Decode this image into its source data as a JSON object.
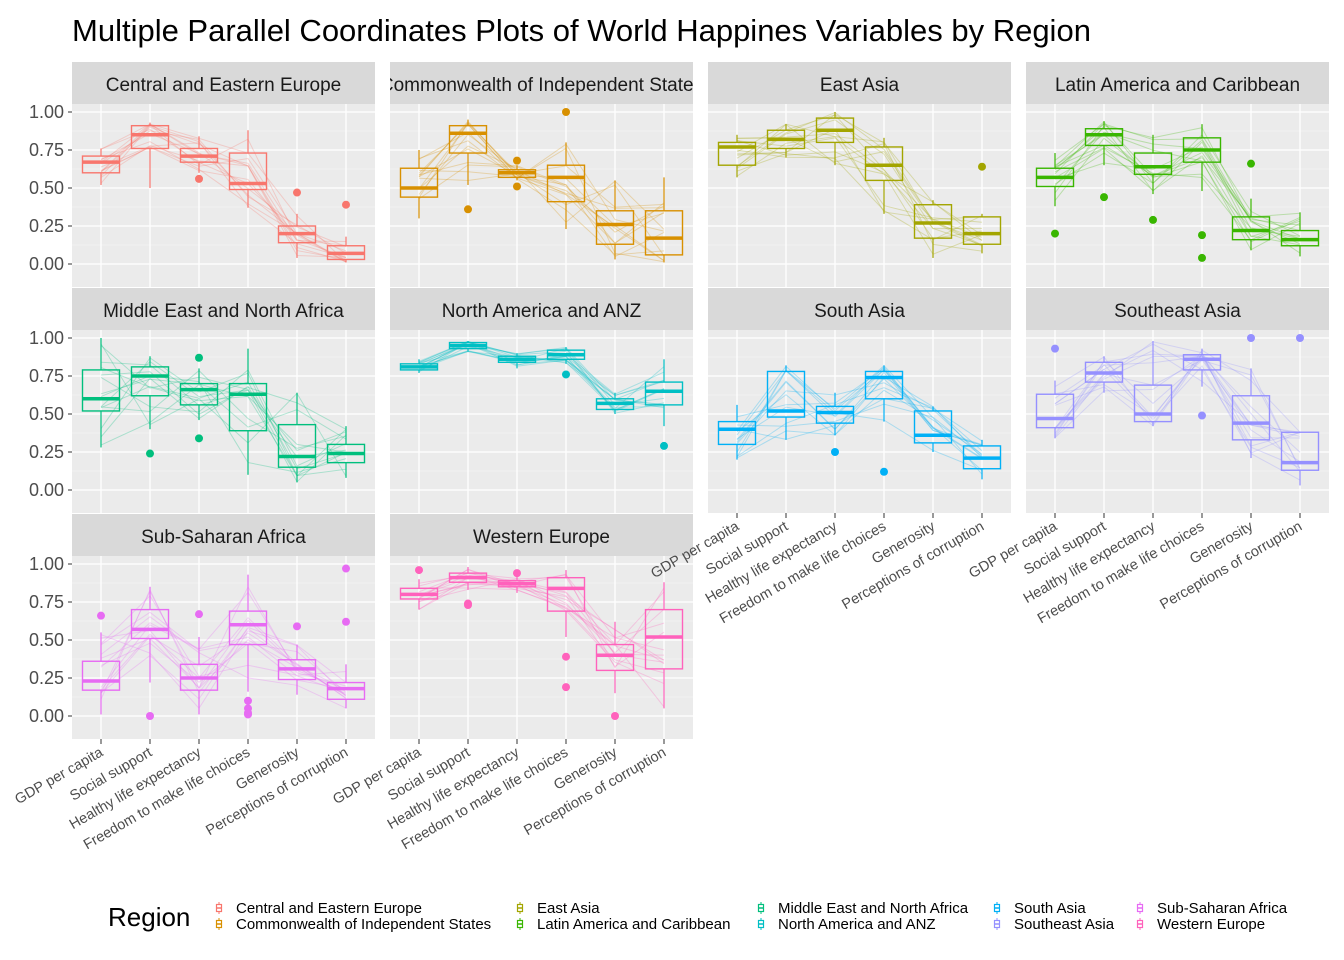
{
  "title": "Multiple Parallel Coordinates Plots of World Happines Variables by Region",
  "chart_data": {
    "type": "boxplot + parallel coordinates",
    "variables": [
      "GDP per capita",
      "Social support",
      "Healthy life expectancy",
      "Freedom to make life choices",
      "Generosity",
      "Perceptions of corruption"
    ],
    "y_ticks": [
      "0.00",
      "0.25",
      "0.50",
      "0.75",
      "1.00"
    ],
    "ylim": [
      0,
      1
    ],
    "grid": true,
    "legend": {
      "title": "Region",
      "position": "bottom",
      "items": [
        {
          "label": "Central and Eastern Europe",
          "color": "#F8766D"
        },
        {
          "label": "Commonwealth of Independent States",
          "color": "#D89000"
        },
        {
          "label": "East Asia",
          "color": "#A3A500"
        },
        {
          "label": "Latin America and Caribbean",
          "color": "#39B600"
        },
        {
          "label": "Middle East and North Africa",
          "color": "#00BF7D"
        },
        {
          "label": "North America and ANZ",
          "color": "#00BFC4"
        },
        {
          "label": "South Asia",
          "color": "#00B0F6"
        },
        {
          "label": "Southeast Asia",
          "color": "#9590FF"
        },
        {
          "label": "Sub-Saharan Africa",
          "color": "#E76BF3"
        },
        {
          "label": "Western Europe",
          "color": "#FF62BC"
        }
      ]
    },
    "panels": [
      {
        "region": "Central and Eastern Europe",
        "strip_label": "Central and Eastern Europe",
        "color": "#F8766D",
        "boxes": [
          {
            "q1": 0.6,
            "median": 0.67,
            "q3": 0.71,
            "min": 0.52,
            "max": 0.76,
            "outliers": []
          },
          {
            "q1": 0.76,
            "median": 0.85,
            "q3": 0.91,
            "min": 0.5,
            "max": 0.93,
            "outliers": []
          },
          {
            "q1": 0.67,
            "median": 0.71,
            "q3": 0.76,
            "min": 0.6,
            "max": 0.84,
            "outliers": [
              0.56
            ]
          },
          {
            "q1": 0.49,
            "median": 0.53,
            "q3": 0.73,
            "min": 0.37,
            "max": 0.88,
            "outliers": []
          },
          {
            "q1": 0.14,
            "median": 0.2,
            "q3": 0.25,
            "min": 0.04,
            "max": 0.33,
            "outliers": [
              0.47
            ]
          },
          {
            "q1": 0.03,
            "median": 0.07,
            "q3": 0.12,
            "min": 0.01,
            "max": 0.18,
            "outliers": [
              0.39
            ]
          }
        ]
      },
      {
        "region": "Commonwealth of Independent States",
        "strip_label": "Commonwealth of Independent States",
        "color": "#D89000",
        "boxes": [
          {
            "q1": 0.44,
            "median": 0.5,
            "q3": 0.63,
            "min": 0.3,
            "max": 0.75,
            "outliers": []
          },
          {
            "q1": 0.73,
            "median": 0.86,
            "q3": 0.91,
            "min": 0.52,
            "max": 0.95,
            "outliers": [
              0.36
            ]
          },
          {
            "q1": 0.57,
            "median": 0.6,
            "q3": 0.62,
            "min": 0.55,
            "max": 0.65,
            "outliers": [
              0.68,
              0.51
            ]
          },
          {
            "q1": 0.41,
            "median": 0.57,
            "q3": 0.65,
            "min": 0.23,
            "max": 0.8,
            "outliers": [
              1.0
            ]
          },
          {
            "q1": 0.13,
            "median": 0.26,
            "q3": 0.35,
            "min": 0.03,
            "max": 0.55,
            "outliers": []
          },
          {
            "q1": 0.06,
            "median": 0.17,
            "q3": 0.35,
            "min": 0.01,
            "max": 0.57,
            "outliers": []
          }
        ]
      },
      {
        "region": "East Asia",
        "strip_label": "East Asia",
        "color": "#A3A500",
        "boxes": [
          {
            "q1": 0.65,
            "median": 0.77,
            "q3": 0.8,
            "min": 0.57,
            "max": 0.85,
            "outliers": []
          },
          {
            "q1": 0.76,
            "median": 0.82,
            "q3": 0.88,
            "min": 0.7,
            "max": 0.92,
            "outliers": []
          },
          {
            "q1": 0.8,
            "median": 0.88,
            "q3": 0.96,
            "min": 0.65,
            "max": 1.0,
            "outliers": []
          },
          {
            "q1": 0.55,
            "median": 0.65,
            "q3": 0.77,
            "min": 0.33,
            "max": 0.83,
            "outliers": []
          },
          {
            "q1": 0.17,
            "median": 0.27,
            "q3": 0.39,
            "min": 0.04,
            "max": 0.42,
            "outliers": []
          },
          {
            "q1": 0.13,
            "median": 0.2,
            "q3": 0.31,
            "min": 0.07,
            "max": 0.33,
            "outliers": [
              0.64
            ]
          }
        ]
      },
      {
        "region": "Latin America and Caribbean",
        "strip_label": "Latin America and Caribbean",
        "color": "#39B600",
        "boxes": [
          {
            "q1": 0.51,
            "median": 0.57,
            "q3": 0.63,
            "min": 0.38,
            "max": 0.73,
            "outliers": [
              0.2
            ]
          },
          {
            "q1": 0.78,
            "median": 0.85,
            "q3": 0.89,
            "min": 0.65,
            "max": 0.94,
            "outliers": [
              0.44
            ]
          },
          {
            "q1": 0.59,
            "median": 0.64,
            "q3": 0.73,
            "min": 0.46,
            "max": 0.85,
            "outliers": [
              0.29
            ]
          },
          {
            "q1": 0.67,
            "median": 0.75,
            "q3": 0.83,
            "min": 0.48,
            "max": 0.92,
            "outliers": [
              0.19,
              0.04
            ]
          },
          {
            "q1": 0.16,
            "median": 0.22,
            "q3": 0.31,
            "min": 0.09,
            "max": 0.43,
            "outliers": [
              0.66
            ]
          },
          {
            "q1": 0.12,
            "median": 0.16,
            "q3": 0.22,
            "min": 0.05,
            "max": 0.34,
            "outliers": []
          }
        ]
      },
      {
        "region": "Middle East and North Africa",
        "strip_label": "Middle East and North Africa",
        "color": "#00BF7D",
        "boxes": [
          {
            "q1": 0.52,
            "median": 0.6,
            "q3": 0.79,
            "min": 0.28,
            "max": 1.0,
            "outliers": []
          },
          {
            "q1": 0.62,
            "median": 0.75,
            "q3": 0.81,
            "min": 0.4,
            "max": 0.88,
            "outliers": [
              0.24
            ]
          },
          {
            "q1": 0.56,
            "median": 0.66,
            "q3": 0.7,
            "min": 0.46,
            "max": 0.8,
            "outliers": [
              0.87,
              0.34
            ]
          },
          {
            "q1": 0.39,
            "median": 0.63,
            "q3": 0.7,
            "min": 0.1,
            "max": 0.93,
            "outliers": []
          },
          {
            "q1": 0.15,
            "median": 0.22,
            "q3": 0.43,
            "min": 0.05,
            "max": 0.64,
            "outliers": []
          },
          {
            "q1": 0.18,
            "median": 0.24,
            "q3": 0.3,
            "min": 0.08,
            "max": 0.42,
            "outliers": []
          }
        ]
      },
      {
        "region": "North America and ANZ",
        "strip_label": "North America and ANZ",
        "color": "#00BFC4",
        "boxes": [
          {
            "q1": 0.79,
            "median": 0.81,
            "q3": 0.83,
            "min": 0.77,
            "max": 0.86,
            "outliers": []
          },
          {
            "q1": 0.93,
            "median": 0.95,
            "q3": 0.97,
            "min": 0.91,
            "max": 0.98,
            "outliers": []
          },
          {
            "q1": 0.84,
            "median": 0.86,
            "q3": 0.88,
            "min": 0.8,
            "max": 0.9,
            "outliers": []
          },
          {
            "q1": 0.86,
            "median": 0.89,
            "q3": 0.92,
            "min": 0.83,
            "max": 0.94,
            "outliers": [
              0.76
            ]
          },
          {
            "q1": 0.53,
            "median": 0.57,
            "q3": 0.6,
            "min": 0.5,
            "max": 0.64,
            "outliers": []
          },
          {
            "q1": 0.56,
            "median": 0.65,
            "q3": 0.71,
            "min": 0.42,
            "max": 0.86,
            "outliers": [
              0.29
            ]
          }
        ]
      },
      {
        "region": "South Asia",
        "strip_label": "South Asia",
        "color": "#00B0F6",
        "boxes": [
          {
            "q1": 0.3,
            "median": 0.4,
            "q3": 0.45,
            "min": 0.2,
            "max": 0.56,
            "outliers": []
          },
          {
            "q1": 0.48,
            "median": 0.52,
            "q3": 0.78,
            "min": 0.33,
            "max": 0.82,
            "outliers": []
          },
          {
            "q1": 0.44,
            "median": 0.51,
            "q3": 0.55,
            "min": 0.36,
            "max": 0.64,
            "outliers": [
              0.25
            ]
          },
          {
            "q1": 0.6,
            "median": 0.74,
            "q3": 0.78,
            "min": 0.45,
            "max": 0.82,
            "outliers": [
              0.12
            ]
          },
          {
            "q1": 0.31,
            "median": 0.36,
            "q3": 0.52,
            "min": 0.25,
            "max": 0.55,
            "outliers": []
          },
          {
            "q1": 0.14,
            "median": 0.21,
            "q3": 0.29,
            "min": 0.07,
            "max": 0.33,
            "outliers": []
          }
        ]
      },
      {
        "region": "Southeast Asia",
        "strip_label": "Southeast Asia",
        "color": "#9590FF",
        "boxes": [
          {
            "q1": 0.41,
            "median": 0.47,
            "q3": 0.63,
            "min": 0.34,
            "max": 0.72,
            "outliers": [
              0.93
            ]
          },
          {
            "q1": 0.71,
            "median": 0.77,
            "q3": 0.84,
            "min": 0.64,
            "max": 0.88,
            "outliers": []
          },
          {
            "q1": 0.45,
            "median": 0.5,
            "q3": 0.69,
            "min": 0.42,
            "max": 0.98,
            "outliers": []
          },
          {
            "q1": 0.79,
            "median": 0.86,
            "q3": 0.89,
            "min": 0.68,
            "max": 0.93,
            "outliers": [
              0.49
            ]
          },
          {
            "q1": 0.33,
            "median": 0.44,
            "q3": 0.62,
            "min": 0.21,
            "max": 0.8,
            "outliers": [
              1.0
            ]
          },
          {
            "q1": 0.13,
            "median": 0.18,
            "q3": 0.38,
            "min": 0.03,
            "max": 0.38,
            "outliers": [
              1.0
            ]
          }
        ]
      },
      {
        "region": "Sub-Saharan Africa",
        "strip_label": "Sub-Saharan Africa",
        "color": "#E76BF3",
        "boxes": [
          {
            "q1": 0.17,
            "median": 0.23,
            "q3": 0.36,
            "min": 0.01,
            "max": 0.55,
            "outliers": [
              0.66
            ]
          },
          {
            "q1": 0.51,
            "median": 0.57,
            "q3": 0.7,
            "min": 0.22,
            "max": 0.85,
            "outliers": [
              0.0
            ]
          },
          {
            "q1": 0.17,
            "median": 0.25,
            "q3": 0.34,
            "min": 0.01,
            "max": 0.52,
            "outliers": [
              0.67
            ]
          },
          {
            "q1": 0.47,
            "median": 0.6,
            "q3": 0.69,
            "min": 0.16,
            "max": 0.93,
            "outliers": [
              0.1,
              0.05,
              0.02,
              0.01
            ]
          },
          {
            "q1": 0.24,
            "median": 0.31,
            "q3": 0.37,
            "min": 0.14,
            "max": 0.47,
            "outliers": [
              0.59
            ]
          },
          {
            "q1": 0.11,
            "median": 0.18,
            "q3": 0.22,
            "min": 0.05,
            "max": 0.34,
            "outliers": [
              0.62,
              0.97
            ]
          }
        ]
      },
      {
        "region": "Western Europe",
        "strip_label": "Western Europe",
        "color": "#FF62BC",
        "boxes": [
          {
            "q1": 0.77,
            "median": 0.8,
            "q3": 0.84,
            "min": 0.7,
            "max": 0.9,
            "outliers": [
              0.96
            ]
          },
          {
            "q1": 0.88,
            "median": 0.91,
            "q3": 0.94,
            "min": 0.83,
            "max": 0.98,
            "outliers": [
              0.74,
              0.73
            ]
          },
          {
            "q1": 0.85,
            "median": 0.87,
            "q3": 0.89,
            "min": 0.81,
            "max": 0.92,
            "outliers": [
              0.94
            ]
          },
          {
            "q1": 0.69,
            "median": 0.84,
            "q3": 0.91,
            "min": 0.52,
            "max": 0.96,
            "outliers": [
              0.39,
              0.19
            ]
          },
          {
            "q1": 0.3,
            "median": 0.4,
            "q3": 0.47,
            "min": 0.15,
            "max": 0.62,
            "outliers": [
              0.0
            ]
          },
          {
            "q1": 0.31,
            "median": 0.52,
            "q3": 0.7,
            "min": 0.05,
            "max": 0.88,
            "outliers": []
          }
        ]
      }
    ]
  }
}
